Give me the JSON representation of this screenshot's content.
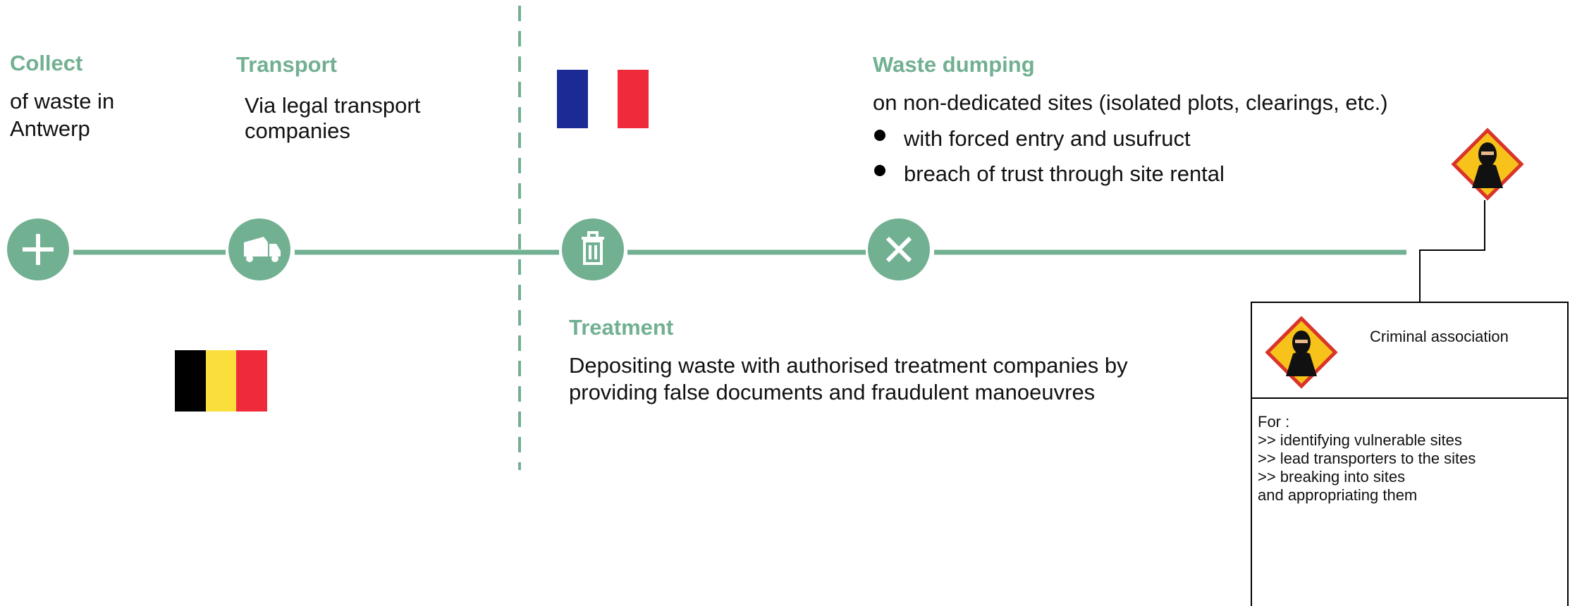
{
  "steps": [
    {
      "title": "Collect",
      "text": [
        "of waste in",
        "Antwerp"
      ]
    },
    {
      "title": "Transport",
      "text": [
        "Via legal transport",
        "companies"
      ]
    },
    {
      "title": "Waste dumping",
      "text": [
        "on non-dedicated sites (isolated plots, clearings, etc.)"
      ],
      "bullets": [
        "with forced entry and usufruct",
        "breach of trust through site rental"
      ]
    }
  ],
  "treatment": {
    "title": "Treatment",
    "text": [
      "Depositing waste with authorised treatment companies by",
      "providing false documents and fraudulent manoeuvres"
    ]
  },
  "criminal_box": {
    "title": "Criminal association",
    "lines": [
      "For :",
      ">> identifying vulnerable sites",
      ">> lead transporters to the sites",
      ">> breaking into sites",
      "and appropriating them"
    ]
  }
}
